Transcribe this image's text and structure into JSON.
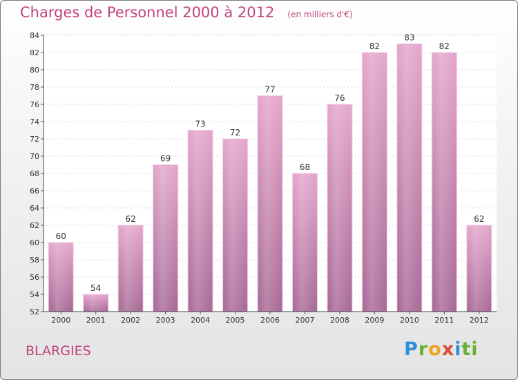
{
  "chart_data": {
    "type": "bar",
    "title": "Charges de Personnel 2000 à 2012",
    "subtitle": "(en milliers d'€)",
    "categories": [
      "2000",
      "2001",
      "2002",
      "2003",
      "2004",
      "2005",
      "2006",
      "2007",
      "2008",
      "2009",
      "2010",
      "2011",
      "2012"
    ],
    "values": [
      60,
      54,
      62,
      69,
      73,
      72,
      77,
      68,
      76,
      82,
      83,
      82,
      62
    ],
    "ylim": [
      52,
      84
    ],
    "yticks": [
      52,
      54,
      56,
      58,
      60,
      62,
      64,
      66,
      68,
      70,
      72,
      74,
      76,
      78,
      80,
      82,
      84
    ],
    "grid": true,
    "bar_color": "#d68bb9",
    "xlabel": "",
    "ylabel": ""
  },
  "location": "BLARGIES",
  "brand": {
    "letters": [
      "P",
      "r",
      "o",
      "x",
      "i",
      "ti"
    ],
    "colors": [
      "#2f8fd8",
      "#66b13a",
      "#f0a11f",
      "#d94a3c",
      "#2f8fd8",
      "#66b13a"
    ]
  },
  "title_color": "#c2417d"
}
